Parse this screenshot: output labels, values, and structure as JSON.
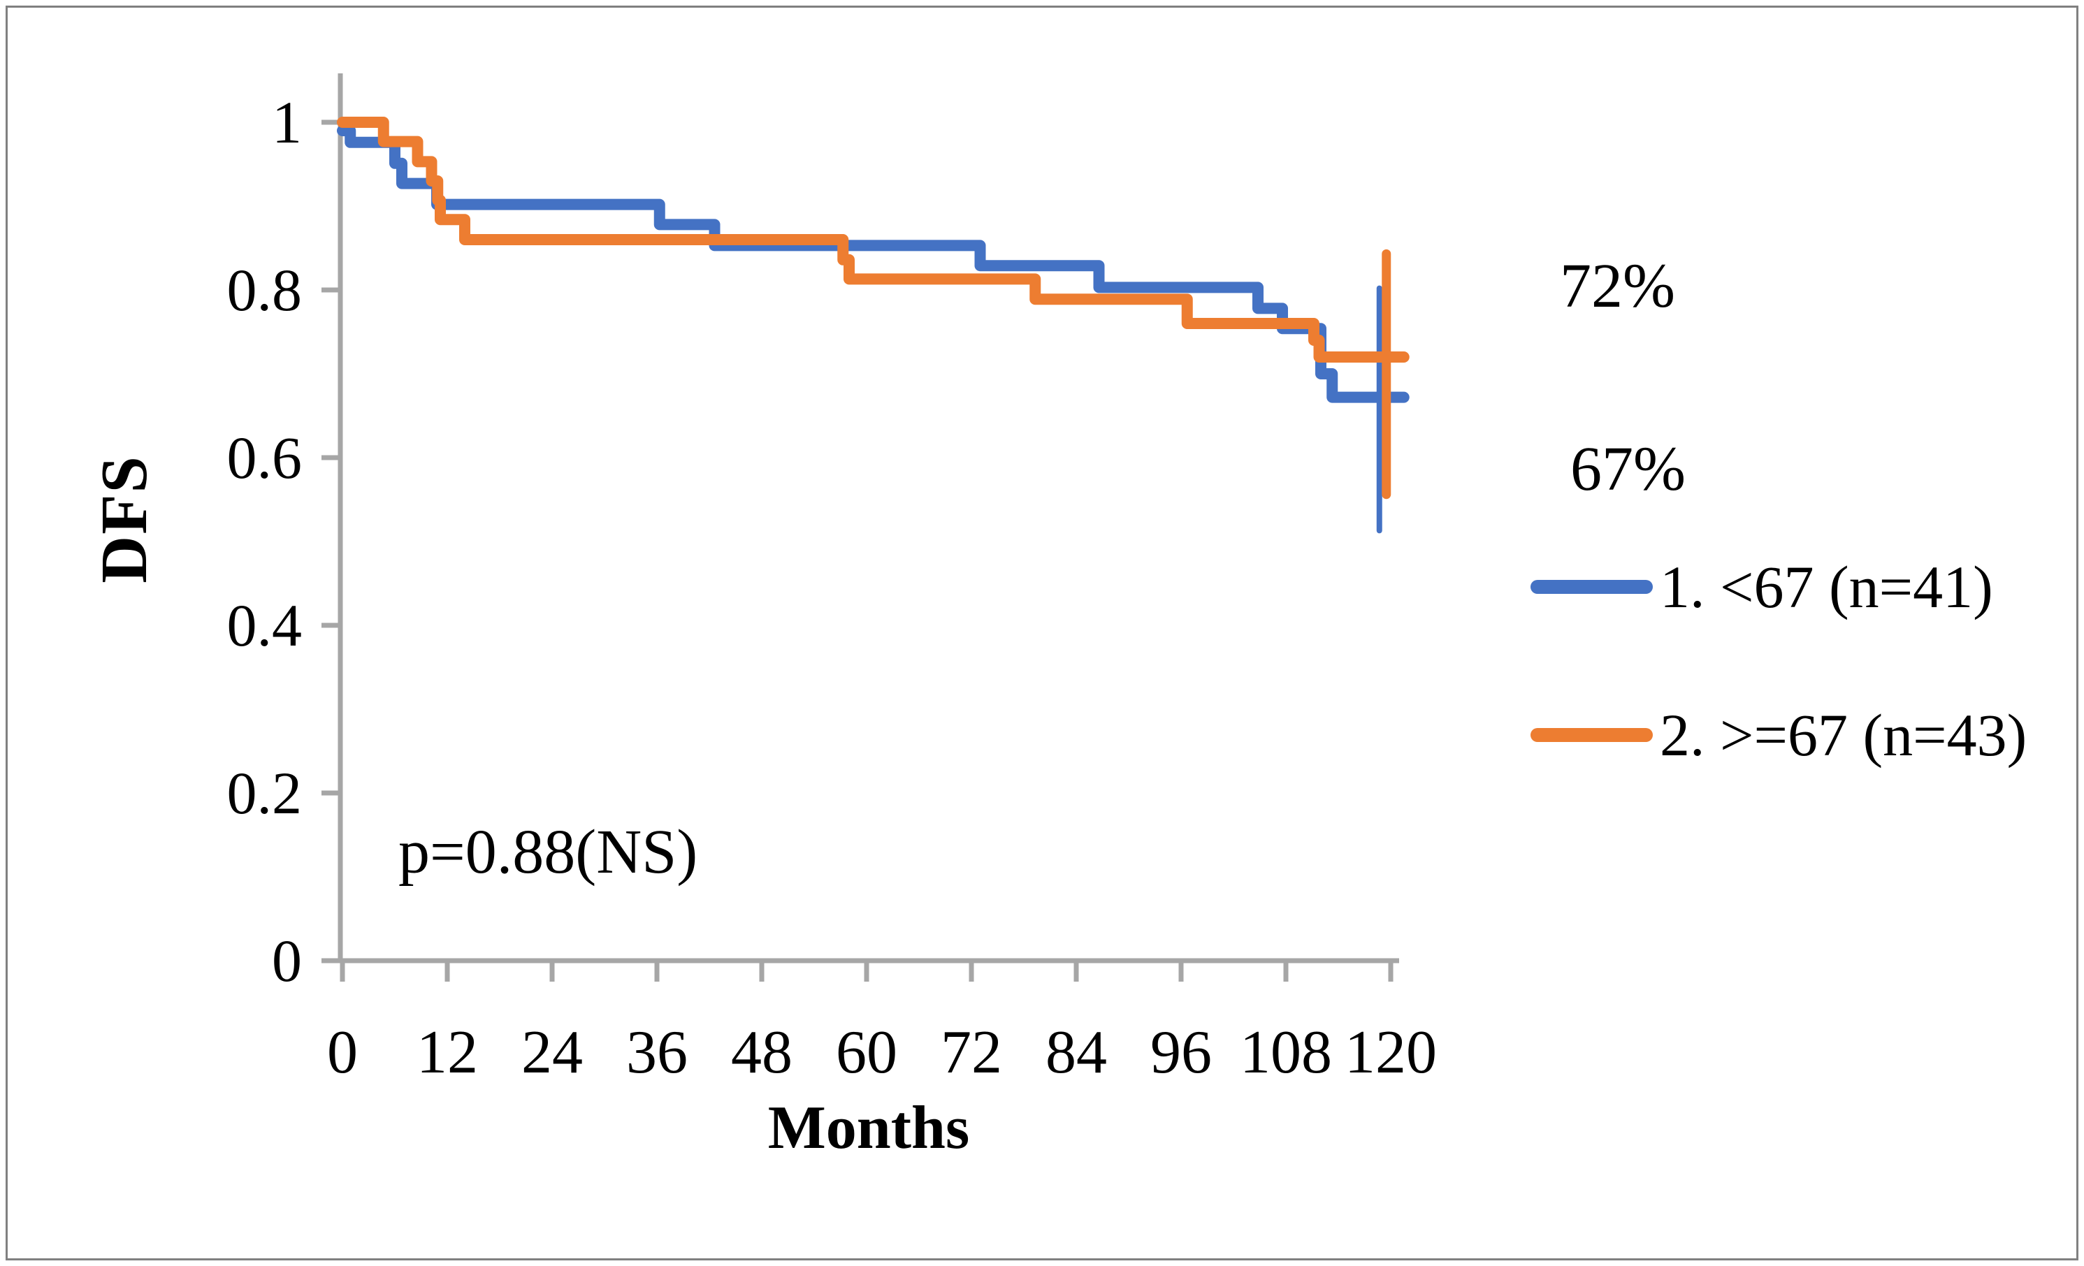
{
  "figure": {
    "background": "#ffffff",
    "border_color": "#808080"
  },
  "chart_data": {
    "type": "line",
    "subtype": "kaplan-meier-step",
    "title": "",
    "xlabel": "Months",
    "ylabel": "DFS",
    "xlim": [
      0,
      120
    ],
    "ylim": [
      0,
      1
    ],
    "x_ticks": [
      0,
      12,
      24,
      36,
      48,
      60,
      72,
      84,
      96,
      108,
      120
    ],
    "y_ticks": [
      0,
      0.2,
      0.4,
      0.6,
      0.8,
      1
    ],
    "y_tick_labels": [
      "0",
      "0.2",
      "0.4",
      "0.6",
      "0.8",
      "1"
    ],
    "grid": false,
    "legend_position": "right",
    "axis_color": "#a6a6a6",
    "p_value_annotation": "p=0.88(NS)",
    "series": [
      {
        "name": "1. <67 (n=41)",
        "color": "#4472C4",
        "final_label": "67%",
        "step_points": [
          [
            0,
            0.99
          ],
          [
            0.9,
            0.976
          ],
          [
            6.0,
            0.951
          ],
          [
            6.8,
            0.927
          ],
          [
            10.8,
            0.902
          ],
          [
            36.3,
            0.878
          ],
          [
            42.6,
            0.853
          ],
          [
            73,
            0.829
          ],
          [
            86.6,
            0.803
          ],
          [
            104.8,
            0.778
          ],
          [
            107.6,
            0.754
          ],
          [
            112,
            0.7
          ],
          [
            113.3,
            0.672
          ]
        ],
        "end_x": 121.5,
        "error_bar": {
          "x": 118.7,
          "low": 0.513,
          "high": 0.802
        }
      },
      {
        "name": "2. >=67 (n=43)",
        "color": "#ED7D31",
        "final_label": "72%",
        "step_points": [
          [
            0,
            1.0
          ],
          [
            4.7,
            0.977
          ],
          [
            8.6,
            0.953
          ],
          [
            10.2,
            0.93
          ],
          [
            10.9,
            0.907
          ],
          [
            11.2,
            0.884
          ],
          [
            14,
            0.86
          ],
          [
            57.3,
            0.836
          ],
          [
            58,
            0.813
          ],
          [
            79.3,
            0.789
          ],
          [
            96.7,
            0.76
          ],
          [
            111.2,
            0.74
          ],
          [
            111.8,
            0.72
          ]
        ],
        "end_x": 121.5,
        "error_bar": {
          "x": 119.5,
          "low": 0.556,
          "high": 0.843
        }
      }
    ],
    "annotations": [
      {
        "text": "72%"
      },
      {
        "text": "67%"
      }
    ]
  }
}
